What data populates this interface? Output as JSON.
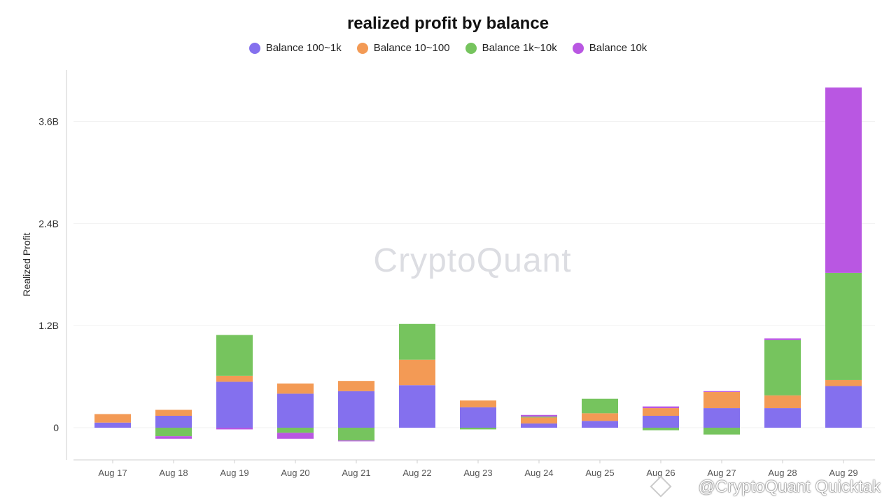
{
  "chart_data": {
    "type": "bar",
    "stacked": true,
    "title": "realized profit by balance",
    "ylabel": "Realized Profit",
    "xlabel": "",
    "categories": [
      "Aug 17",
      "Aug 18",
      "Aug 19",
      "Aug 20",
      "Aug 21",
      "Aug 22",
      "Aug 23",
      "Aug 24",
      "Aug 25",
      "Aug 26",
      "Aug 27",
      "Aug 28",
      "Aug 29"
    ],
    "yticks": [
      0,
      1.2,
      2.4,
      3.6
    ],
    "ytick_labels": [
      "0",
      "1.2B",
      "2.4B",
      "3.6B"
    ],
    "ylim": [
      -0.38,
      4.2
    ],
    "unit": "B",
    "grid": true,
    "legend_position": "top-center",
    "series": [
      {
        "name": "Balance 100~1k",
        "color": "#8470ee",
        "values": [
          0.06,
          0.14,
          0.54,
          0.4,
          0.43,
          0.5,
          0.24,
          0.05,
          0.08,
          0.14,
          0.23,
          0.23,
          0.49
        ]
      },
      {
        "name": "Balance 10~100",
        "color": "#f39a55",
        "values": [
          0.1,
          0.07,
          0.07,
          0.12,
          0.12,
          0.3,
          0.08,
          0.07,
          0.09,
          0.09,
          0.19,
          0.15,
          0.07
        ]
      },
      {
        "name": "Balance 1k~10k",
        "color": "#76c45e",
        "values": [
          0.0,
          -0.1,
          0.48,
          -0.06,
          -0.15,
          0.42,
          -0.02,
          0.01,
          0.17,
          -0.03,
          -0.08,
          0.65,
          1.26
        ]
      },
      {
        "name": "Balance 10k",
        "color": "#b957e2",
        "values": [
          0.0,
          -0.03,
          -0.02,
          -0.07,
          -0.01,
          0.0,
          0.0,
          0.02,
          0.0,
          0.02,
          0.01,
          0.02,
          2.18
        ]
      }
    ]
  },
  "watermark": "CryptoQuant",
  "footer_mark": "@CryptoQuant Quicktak"
}
